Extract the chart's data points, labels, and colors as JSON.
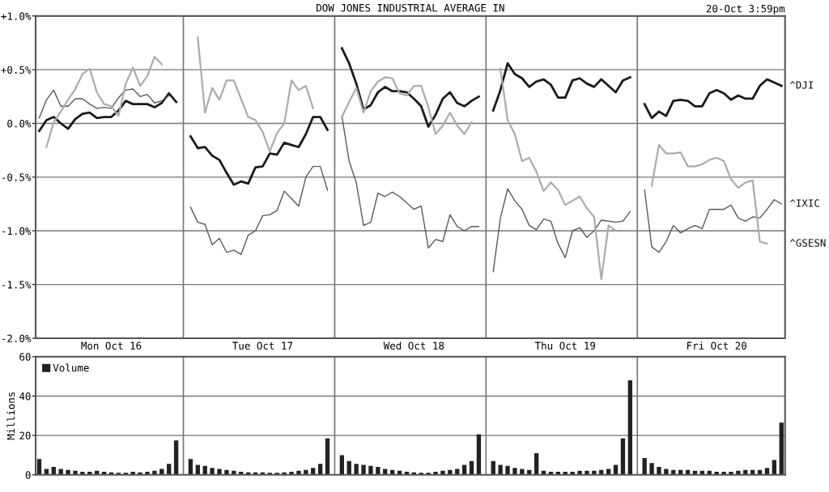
{
  "chart_data": [
    {
      "type": "line",
      "title": "DOW JONES INDUSTRIAL AVERAGE IN",
      "annotations": [
        "20-Oct 3:59pm"
      ],
      "categories": [
        null,
        null,
        null,
        null,
        null,
        null,
        null,
        null,
        null,
        null,
        "Mon Oct 16",
        null,
        null,
        null,
        null,
        null,
        null,
        null,
        null,
        null,
        null,
        null,
        null,
        null,
        null,
        null,
        null,
        null,
        null,
        null,
        null,
        "Tue Oct 17",
        null,
        null,
        null,
        null,
        null,
        null,
        null,
        null,
        null,
        null,
        null,
        null,
        null,
        null,
        null,
        null,
        null,
        null,
        null,
        null,
        "Wed Oct 18",
        null,
        null,
        null,
        null,
        null,
        null,
        null,
        null,
        null,
        null,
        null,
        null,
        null,
        null,
        null,
        null,
        null,
        null,
        null,
        null,
        "Thu Oct 19",
        null,
        null,
        null,
        null,
        null,
        null,
        null,
        null,
        null,
        null,
        null,
        null,
        null,
        null,
        null,
        null,
        null,
        null,
        null,
        null,
        "Fri Oct 20",
        null,
        null,
        null,
        null,
        null,
        null,
        null,
        null,
        null
      ],
      "ylim": [
        -2,
        1
      ],
      "yticks": [
        {
          "value": 1,
          "label": "+1.0%"
        },
        {
          "value": 0.5,
          "label": "+0.5%"
        },
        {
          "value": 0,
          "label": "0.0%"
        },
        {
          "value": -0.5,
          "label": "-0.5%"
        },
        {
          "value": -1,
          "label": "-1.0%"
        },
        {
          "value": -1.5,
          "label": "-1.5%"
        },
        {
          "value": -2,
          "label": "-2.0%"
        }
      ],
      "grid": "y",
      "marker": "none",
      "line_style": "solid",
      "series": [
        {
          "name": "^DJI",
          "color": "#1a1a1a",
          "values": [
            -0.07,
            0.03,
            0.06,
            0.0,
            -0.05,
            0.04,
            0.09,
            0.1,
            0.05,
            0.06,
            0.06,
            0.12,
            0.21,
            0.18,
            0.18,
            0.18,
            0.15,
            0.19,
            0.28,
            0.2,
            null,
            -0.12,
            -0.23,
            -0.22,
            -0.3,
            -0.34,
            -0.46,
            -0.57,
            -0.54,
            -0.56,
            -0.41,
            -0.4,
            -0.28,
            -0.29,
            -0.18,
            -0.2,
            -0.22,
            -0.1,
            0.06,
            0.06,
            -0.06,
            null,
            0.7,
            0.56,
            0.37,
            0.13,
            0.17,
            0.29,
            0.34,
            0.3,
            0.3,
            0.29,
            0.23,
            0.16,
            -0.03,
            0.08,
            0.23,
            0.29,
            0.19,
            0.16,
            0.21,
            0.25,
            null,
            0.12,
            0.31,
            0.56,
            0.46,
            0.42,
            0.34,
            0.39,
            0.41,
            0.36,
            0.24,
            0.24,
            0.4,
            0.42,
            0.37,
            0.34,
            0.41,
            0.35,
            0.29,
            0.4,
            0.43,
            null,
            0.18,
            0.05,
            0.11,
            0.07,
            0.21,
            0.22,
            0.21,
            0.16,
            0.16,
            0.28,
            0.31,
            0.28,
            0.22,
            0.26,
            0.23,
            0.23,
            0.35,
            0.41,
            0.38,
            0.35
          ]
        },
        {
          "name": "^IXIC",
          "color": "#5a5a5a",
          "values": [
            0.05,
            0.22,
            0.31,
            0.16,
            0.16,
            0.23,
            0.23,
            0.18,
            0.14,
            0.15,
            0.14,
            0.24,
            0.31,
            0.32,
            0.25,
            0.27,
            0.19,
            0.21,
            0.26,
            null,
            null,
            -0.78,
            -0.92,
            -0.94,
            -1.13,
            -1.07,
            -1.2,
            -1.18,
            -1.22,
            -1.04,
            -1.0,
            -0.86,
            -0.85,
            -0.81,
            -0.63,
            -0.7,
            -0.77,
            -0.5,
            -0.4,
            -0.4,
            -0.62,
            null,
            0.07,
            -0.35,
            -0.55,
            -0.95,
            -0.92,
            -0.65,
            -0.68,
            -0.64,
            -0.68,
            -0.74,
            -0.8,
            -0.77,
            -1.16,
            -1.08,
            -1.1,
            -0.85,
            -0.96,
            -1.0,
            -0.96,
            -0.96,
            null,
            -1.38,
            -0.88,
            -0.61,
            -0.72,
            -0.8,
            -0.95,
            -0.99,
            -0.89,
            -0.91,
            -1.12,
            -1.25,
            -1.0,
            -0.97,
            -1.06,
            -1.0,
            -0.9,
            -0.91,
            -0.92,
            -0.91,
            -0.82,
            null,
            -0.62,
            -1.15,
            -1.2,
            -1.1,
            -0.95,
            -1.02,
            -0.98,
            -0.95,
            -0.98,
            -0.8,
            -0.8,
            -0.8,
            -0.76,
            -0.88,
            -0.91,
            -0.87,
            -0.88,
            -0.8,
            -0.71,
            -0.75
          ]
        },
        {
          "name": "^GSESN",
          "color": "#acacac",
          "values": [
            null,
            -0.22,
            0.01,
            0.11,
            0.22,
            0.32,
            0.46,
            0.51,
            0.29,
            0.18,
            0.16,
            0.07,
            0.37,
            0.52,
            0.35,
            0.44,
            0.62,
            0.55,
            null,
            null,
            null,
            null,
            0.8,
            0.1,
            0.33,
            0.22,
            0.4,
            0.4,
            0.23,
            0.06,
            0.03,
            -0.08,
            -0.26,
            -0.09,
            0.0,
            0.4,
            0.31,
            0.35,
            0.14,
            null,
            null,
            null,
            0.06,
            0.2,
            0.33,
            0.1,
            0.3,
            0.39,
            0.43,
            0.42,
            0.28,
            0.26,
            0.35,
            0.35,
            0.15,
            -0.1,
            -0.02,
            0.1,
            -0.02,
            -0.1,
            0.01,
            null,
            null,
            null,
            0.51,
            0.03,
            -0.1,
            -0.35,
            -0.32,
            -0.45,
            -0.63,
            -0.55,
            -0.62,
            -0.76,
            -0.72,
            -0.68,
            -0.79,
            -0.87,
            -1.45,
            -0.95,
            -1.0,
            null,
            null,
            null,
            null,
            -0.58,
            -0.2,
            -0.28,
            -0.28,
            -0.27,
            -0.4,
            -0.4,
            -0.38,
            -0.34,
            -0.32,
            -0.35,
            -0.52,
            -0.6,
            -0.55,
            -0.53,
            -1.1,
            -1.12,
            null,
            null
          ]
        }
      ]
    },
    {
      "type": "bar",
      "ylabel": "Millions",
      "categories": [
        null,
        null,
        null,
        null,
        null,
        null,
        null,
        null,
        null,
        null,
        null,
        null,
        null,
        null,
        null,
        null,
        null,
        null,
        null,
        null,
        null,
        null,
        null,
        null,
        null,
        null,
        null,
        null,
        null,
        null,
        null,
        null,
        null,
        null,
        null,
        null,
        null,
        null,
        null,
        null,
        null,
        null,
        null,
        null,
        null,
        null,
        null,
        null,
        null,
        null,
        null,
        null,
        null,
        null,
        null,
        null,
        null,
        null,
        null,
        null,
        null,
        null,
        null,
        null,
        null,
        null,
        null,
        null,
        null,
        null,
        null,
        null,
        null,
        null,
        null,
        null,
        null,
        null,
        null,
        null,
        null,
        null,
        null,
        null,
        null,
        null,
        null,
        null,
        null,
        null,
        null,
        null,
        null,
        null,
        null,
        null,
        null,
        null,
        null,
        null,
        null,
        null,
        null,
        null
      ],
      "ylim": [
        0,
        60
      ],
      "yticks": [
        0,
        20,
        40,
        60
      ],
      "grid": "y",
      "legend": "top left",
      "tick_labels": "y",
      "series": [
        {
          "name": "Volume",
          "color": "#222222",
          "values": [
            8,
            3,
            4,
            3,
            2.5,
            2,
            1.5,
            1.5,
            2,
            1.5,
            1.2,
            1,
            1,
            1.5,
            1.2,
            1.5,
            2,
            3,
            5.5,
            17.5,
            null,
            8,
            5,
            4.5,
            3.5,
            3,
            2.5,
            2,
            1.5,
            1.2,
            1.2,
            1.2,
            1,
            1,
            1.2,
            1.5,
            2,
            2.5,
            3.5,
            5.5,
            18.5,
            null,
            10,
            7,
            5.5,
            5,
            4.5,
            4,
            3,
            2.5,
            2,
            1.5,
            1.2,
            1,
            1,
            1.5,
            2,
            2.5,
            3,
            5,
            7,
            20.5,
            null,
            7,
            5,
            4.5,
            3.5,
            3,
            2.5,
            11,
            2,
            1.5,
            1.5,
            1.5,
            1.5,
            2,
            2,
            2,
            2.5,
            3,
            5,
            18.5,
            48,
            null,
            8.5,
            6,
            4,
            3,
            2.5,
            2.5,
            2.5,
            2,
            2,
            2,
            1.5,
            1.5,
            1.5,
            2,
            2.5,
            2.5,
            2.5,
            3.5,
            7.5,
            26.5
          ]
        }
      ]
    }
  ]
}
